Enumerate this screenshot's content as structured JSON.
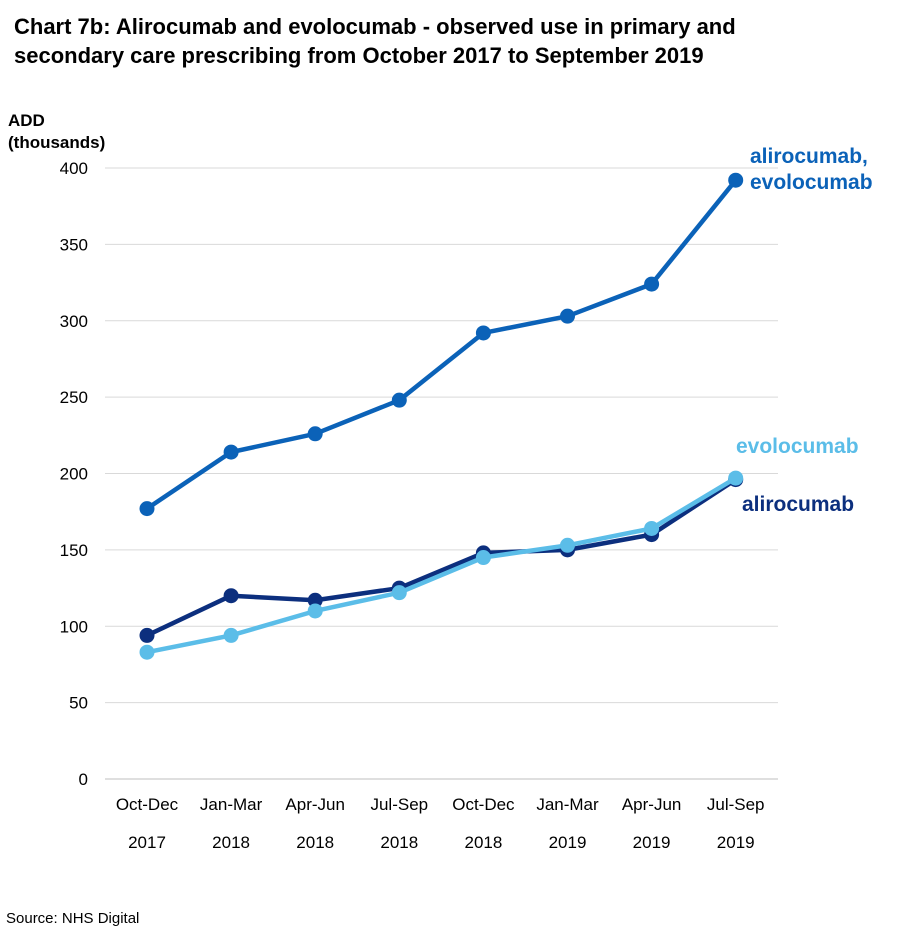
{
  "title_line1": "Chart 7b: Alirocumab and evolocumab - observed use in primary and",
  "title_line2": "secondary care prescribing from October 2017 to September 2019",
  "source": "Source: NHS Digital",
  "chart_data": {
    "type": "line",
    "title": "Chart 7b: Alirocumab and evolocumab - observed use in primary and secondary care prescribing from October 2017 to September 2019",
    "ylabel_line1": "ADD",
    "ylabel_line2": "(thousands)",
    "xlabel": "",
    "categories": [
      {
        "period": "Oct-Dec",
        "year": "2017"
      },
      {
        "period": "Jan-Mar",
        "year": "2018"
      },
      {
        "period": "Apr-Jun",
        "year": "2018"
      },
      {
        "period": "Jul-Sep",
        "year": "2018"
      },
      {
        "period": "Oct-Dec",
        "year": "2018"
      },
      {
        "period": "Jan-Mar",
        "year": "2019"
      },
      {
        "period": "Apr-Jun",
        "year": "2019"
      },
      {
        "period": "Jul-Sep",
        "year": "2019"
      }
    ],
    "ylim": [
      0,
      400
    ],
    "yticks": [
      "0",
      "50",
      "100",
      "150",
      "200",
      "250",
      "300",
      "350",
      "400"
    ],
    "grid": true,
    "series": [
      {
        "name_lines": [
          "alirocumab,",
          "evolocumab"
        ],
        "color": "#0b62b8",
        "values": [
          177,
          214,
          226,
          248,
          292,
          303,
          324,
          392
        ]
      },
      {
        "name_lines": [
          "alirocumab"
        ],
        "color": "#0c2f7e",
        "values": [
          94,
          120,
          117,
          125,
          148,
          150,
          160,
          196
        ]
      },
      {
        "name_lines": [
          "evolocumab"
        ],
        "color": "#5bbde8",
        "values": [
          83,
          94,
          110,
          122,
          145,
          153,
          164,
          197
        ]
      }
    ]
  }
}
